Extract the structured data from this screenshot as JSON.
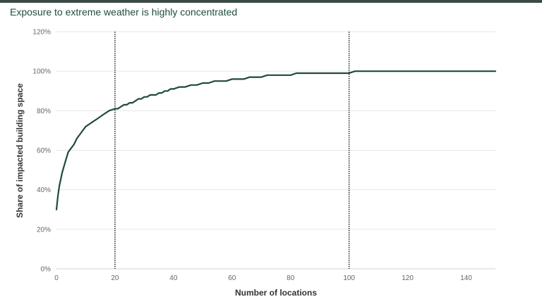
{
  "chart_data": {
    "type": "line",
    "title": "Exposure to extreme weather is highly concentrated",
    "xlabel": "Number of locations",
    "ylabel": "Share of impacted building space",
    "xlim": [
      0,
      150
    ],
    "ylim": [
      0,
      120
    ],
    "x_ticks": [
      0,
      20,
      40,
      60,
      80,
      100,
      120,
      140
    ],
    "x_tick_labels": [
      "0",
      "20",
      "40",
      "60",
      "80",
      "100",
      "120",
      "140"
    ],
    "y_ticks": [
      0,
      20,
      40,
      60,
      80,
      100,
      120
    ],
    "y_tick_labels": [
      "0%",
      "20%",
      "40%",
      "60%",
      "80%",
      "100%",
      "120%"
    ],
    "grid": "horizontal",
    "legend": "none",
    "line_color": "#1f4a3f",
    "reference_lines_x": [
      20,
      100
    ],
    "series": [
      {
        "x": [
          0,
          0.5,
          1,
          2,
          3,
          4,
          5,
          6,
          7,
          8,
          9,
          10,
          12,
          14,
          16,
          18,
          20,
          21,
          22,
          23,
          24,
          25,
          26,
          27,
          28,
          29,
          30,
          31,
          32,
          33,
          34,
          35,
          36,
          37,
          38,
          39,
          40,
          42,
          44,
          46,
          48,
          50,
          52,
          54,
          56,
          58,
          60,
          62,
          64,
          66,
          68,
          70,
          72,
          74,
          76,
          78,
          80,
          82,
          84,
          86,
          88,
          90,
          92,
          94,
          96,
          98,
          100,
          101,
          102,
          110,
          120,
          130,
          140,
          150
        ],
        "values": [
          30,
          37,
          42,
          49,
          54,
          59,
          61,
          63,
          66,
          68,
          70,
          72,
          74,
          76,
          78,
          80,
          81,
          81,
          82,
          83,
          83,
          84,
          84,
          85,
          86,
          86,
          87,
          87,
          88,
          88,
          88,
          89,
          89,
          90,
          90,
          91,
          91,
          92,
          92,
          93,
          93,
          94,
          94,
          95,
          95,
          95,
          96,
          96,
          96,
          97,
          97,
          97,
          98,
          98,
          98,
          98,
          98,
          99,
          99,
          99,
          99,
          99,
          99,
          99,
          99,
          99,
          99,
          99.5,
          100,
          100,
          100,
          100,
          100,
          100
        ]
      }
    ]
  }
}
